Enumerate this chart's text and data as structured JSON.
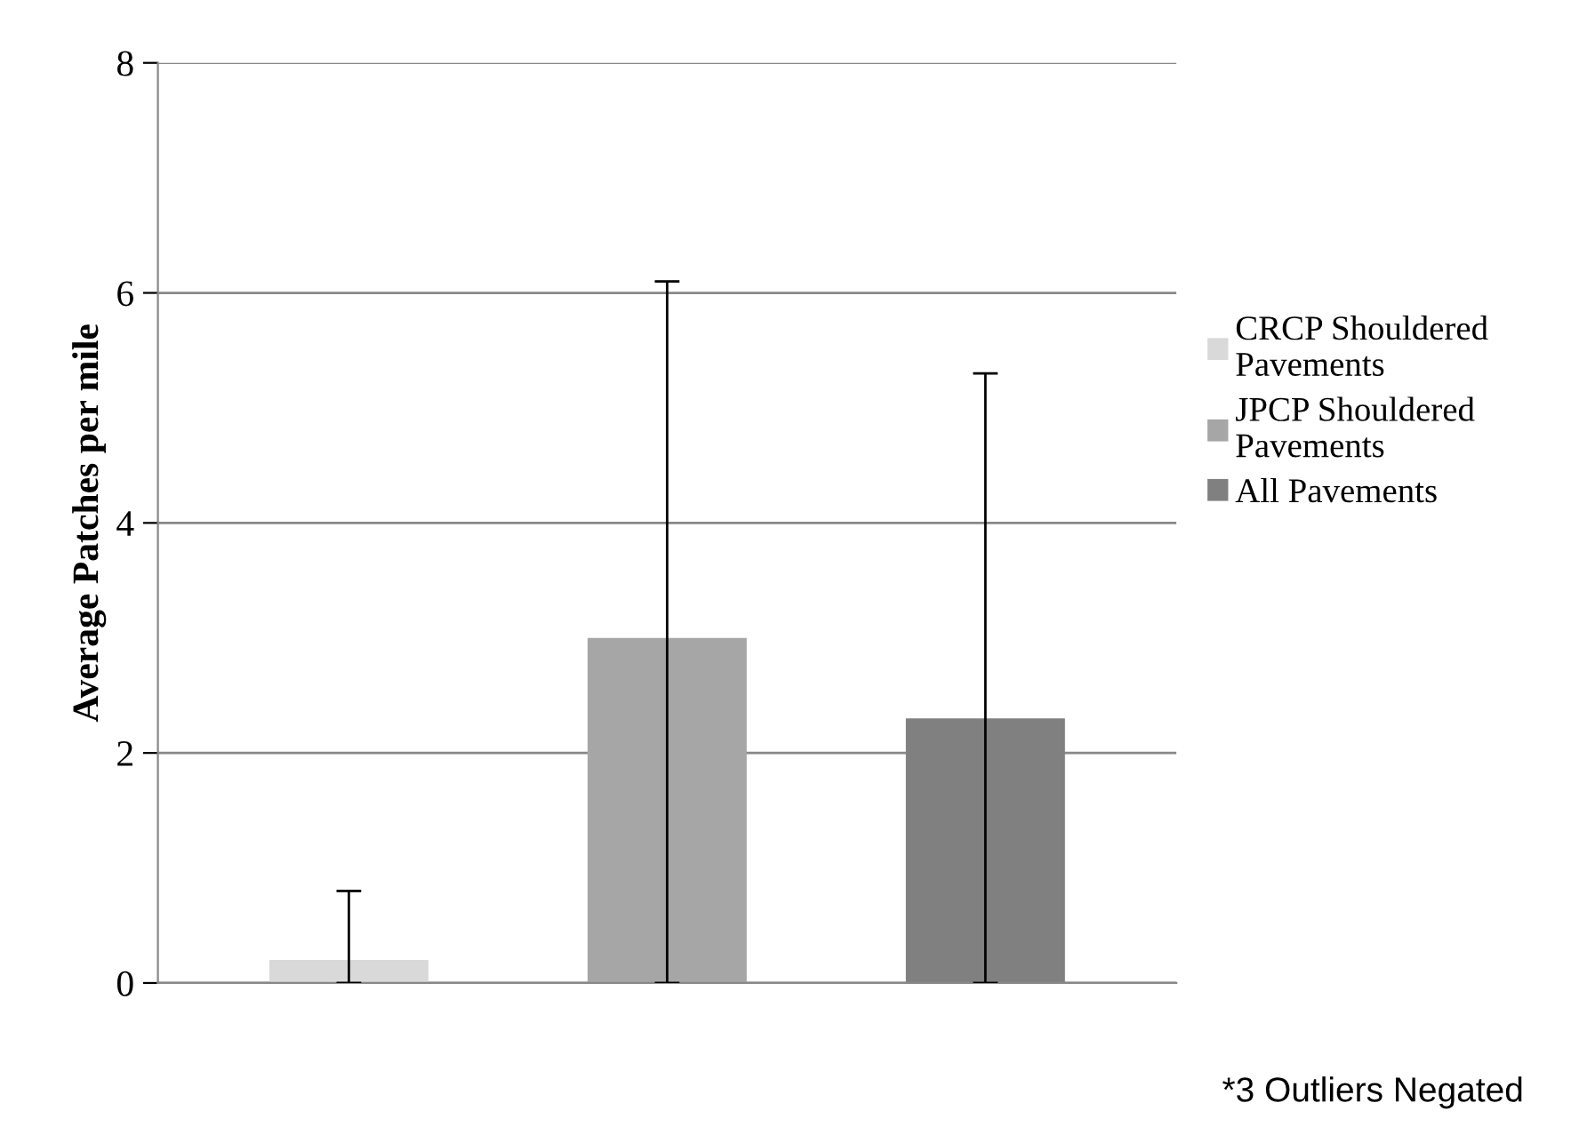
{
  "chart_data": {
    "type": "bar",
    "ylabel": "Average Patches per mile",
    "categories": [
      null,
      null,
      null
    ],
    "series": [
      {
        "name": "CRCP Shouldered Pavements",
        "color": "#d9d9d9",
        "values": [
          0.2,
          null,
          null
        ],
        "errors": [
          [
            0,
            0.8
          ],
          null,
          null
        ]
      },
      {
        "name": "JPCP Shouldered Pavements",
        "color": "#a6a6a6",
        "values": [
          null,
          3.0,
          null
        ],
        "errors": [
          null,
          [
            0,
            6.1
          ],
          null
        ]
      },
      {
        "name": "All Pavements",
        "color": "#808080",
        "values": [
          null,
          null,
          2.3
        ],
        "errors": [
          null,
          null,
          [
            0,
            5.3
          ]
        ]
      }
    ],
    "ylim": [
      0,
      8
    ],
    "yticks": [
      0,
      2,
      4,
      6,
      8
    ],
    "grid": "y",
    "legend": "right",
    "tick_labels": "y",
    "annotations": [
      "*3 Outliers Negated"
    ]
  }
}
